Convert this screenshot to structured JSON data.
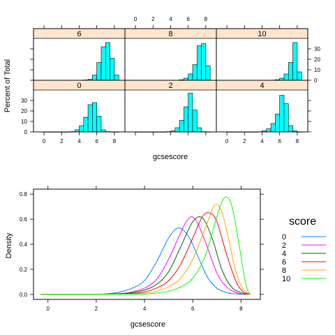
{
  "chart_data": [
    {
      "type": "bar",
      "subtype": "histogram-lattice",
      "xlabel": "gcsescore",
      "ylabel": "Percent of Total",
      "xlim": [
        -1.2,
        9.2
      ],
      "ylim": [
        0,
        40
      ],
      "x_ticks": [
        0,
        2,
        4,
        6,
        8
      ],
      "y_ticks": [
        0,
        10,
        20,
        30
      ],
      "strip_color": "#ffe5cc",
      "bar_color": "#00ffff",
      "bin_width": 0.5,
      "bin_starts": [
        0,
        0.5,
        1,
        1.5,
        2,
        2.5,
        3,
        3.5,
        4,
        4.5,
        5,
        5.5,
        6,
        6.5,
        7,
        7.5,
        8
      ],
      "panels": [
        {
          "label": "6",
          "values": [
            0,
            0,
            0,
            0,
            0,
            0,
            0,
            0,
            0.1,
            0.3,
            1,
            5,
            17,
            32,
            36,
            21,
            5
          ]
        },
        {
          "label": "8",
          "values": [
            0,
            0,
            0,
            0,
            0,
            0,
            0,
            0,
            0,
            0.1,
            0.5,
            2,
            6,
            15,
            33,
            35,
            14
          ]
        },
        {
          "label": "10",
          "values": [
            0,
            0,
            0,
            0,
            0,
            0,
            0,
            0,
            0,
            0,
            0.2,
            0.5,
            2,
            6,
            17,
            36,
            8
          ]
        },
        {
          "label": "0",
          "values": [
            0,
            0,
            0,
            0,
            0,
            0,
            0.3,
            2,
            6,
            14,
            26,
            28,
            15,
            2,
            0.3,
            0,
            0
          ]
        },
        {
          "label": "2",
          "values": [
            0,
            0,
            0,
            0,
            0,
            0,
            0,
            0.3,
            1,
            4,
            11,
            24,
            37,
            21,
            4,
            0.3,
            0
          ]
        },
        {
          "label": "4",
          "values": [
            0,
            0,
            0,
            0,
            0,
            0,
            0,
            0.2,
            1,
            3,
            8,
            17,
            35,
            27,
            6,
            1,
            0
          ]
        }
      ]
    },
    {
      "type": "line",
      "subtype": "density",
      "xlabel": "gcsescore",
      "ylabel": "Density",
      "xlim": [
        -0.6,
        8.8
      ],
      "ylim": [
        -0.04,
        0.84
      ],
      "x_ticks": [
        0,
        2,
        4,
        6,
        8
      ],
      "y_ticks": [
        0.0,
        0.2,
        0.4,
        0.6,
        0.8
      ],
      "y_tick_labels": [
        "0.0",
        "0.2",
        "0.4",
        "0.6",
        "0.8"
      ],
      "legend": {
        "title": "score",
        "placement": "right"
      },
      "series": [
        {
          "name": "0",
          "color": "#0080ff",
          "x": [
            -0.3,
            2.0,
            2.5,
            3.0,
            3.5,
            4.0,
            4.5,
            5.0,
            5.4,
            5.8,
            6.2,
            6.6,
            7.0,
            7.4,
            7.8,
            8.2
          ],
          "y": [
            0,
            0.002,
            0.006,
            0.02,
            0.05,
            0.11,
            0.26,
            0.45,
            0.53,
            0.47,
            0.31,
            0.14,
            0.05,
            0.015,
            0.004,
            0
          ]
        },
        {
          "name": "2",
          "color": "#ff00ff",
          "x": [
            -0.3,
            2.0,
            3.0,
            3.5,
            4.0,
            4.5,
            5.0,
            5.4,
            5.8,
            6.1,
            6.5,
            7.0,
            7.4,
            7.8,
            8.2
          ],
          "y": [
            0,
            0.001,
            0.007,
            0.02,
            0.05,
            0.12,
            0.28,
            0.45,
            0.6,
            0.6,
            0.43,
            0.17,
            0.06,
            0.015,
            0
          ]
        },
        {
          "name": "4",
          "color": "#006400",
          "x": [
            -0.3,
            2.0,
            3.0,
            3.5,
            4.0,
            4.5,
            5.0,
            5.5,
            6.0,
            6.4,
            6.8,
            7.2,
            7.6,
            8.0,
            8.3
          ],
          "y": [
            0,
            0.001,
            0.005,
            0.015,
            0.035,
            0.08,
            0.18,
            0.38,
            0.58,
            0.61,
            0.45,
            0.2,
            0.06,
            0.015,
            0
          ]
        },
        {
          "name": "6",
          "color": "#ff0000",
          "x": [
            -0.3,
            2.5,
            3.5,
            4.0,
            4.5,
            5.0,
            5.5,
            6.0,
            6.4,
            6.7,
            7.0,
            7.4,
            7.8,
            8.1,
            8.4
          ],
          "y": [
            0,
            0.001,
            0.008,
            0.02,
            0.05,
            0.11,
            0.24,
            0.45,
            0.62,
            0.65,
            0.58,
            0.32,
            0.1,
            0.02,
            0
          ]
        },
        {
          "name": "8",
          "color": "#ffa500",
          "x": [
            -0.3,
            3.0,
            4.0,
            4.5,
            5.0,
            5.5,
            6.0,
            6.5,
            6.9,
            7.2,
            7.5,
            7.8,
            8.1,
            8.4
          ],
          "y": [
            0,
            0.001,
            0.01,
            0.025,
            0.06,
            0.13,
            0.28,
            0.52,
            0.71,
            0.66,
            0.43,
            0.17,
            0.04,
            0
          ]
        },
        {
          "name": "10",
          "color": "#00ff00",
          "x": [
            -0.3,
            3.5,
            4.5,
            5.0,
            5.5,
            6.0,
            6.5,
            7.0,
            7.3,
            7.6,
            7.9,
            8.2,
            8.4
          ],
          "y": [
            0,
            0.001,
            0.01,
            0.025,
            0.06,
            0.13,
            0.3,
            0.62,
            0.77,
            0.72,
            0.42,
            0.08,
            0
          ]
        }
      ]
    }
  ]
}
